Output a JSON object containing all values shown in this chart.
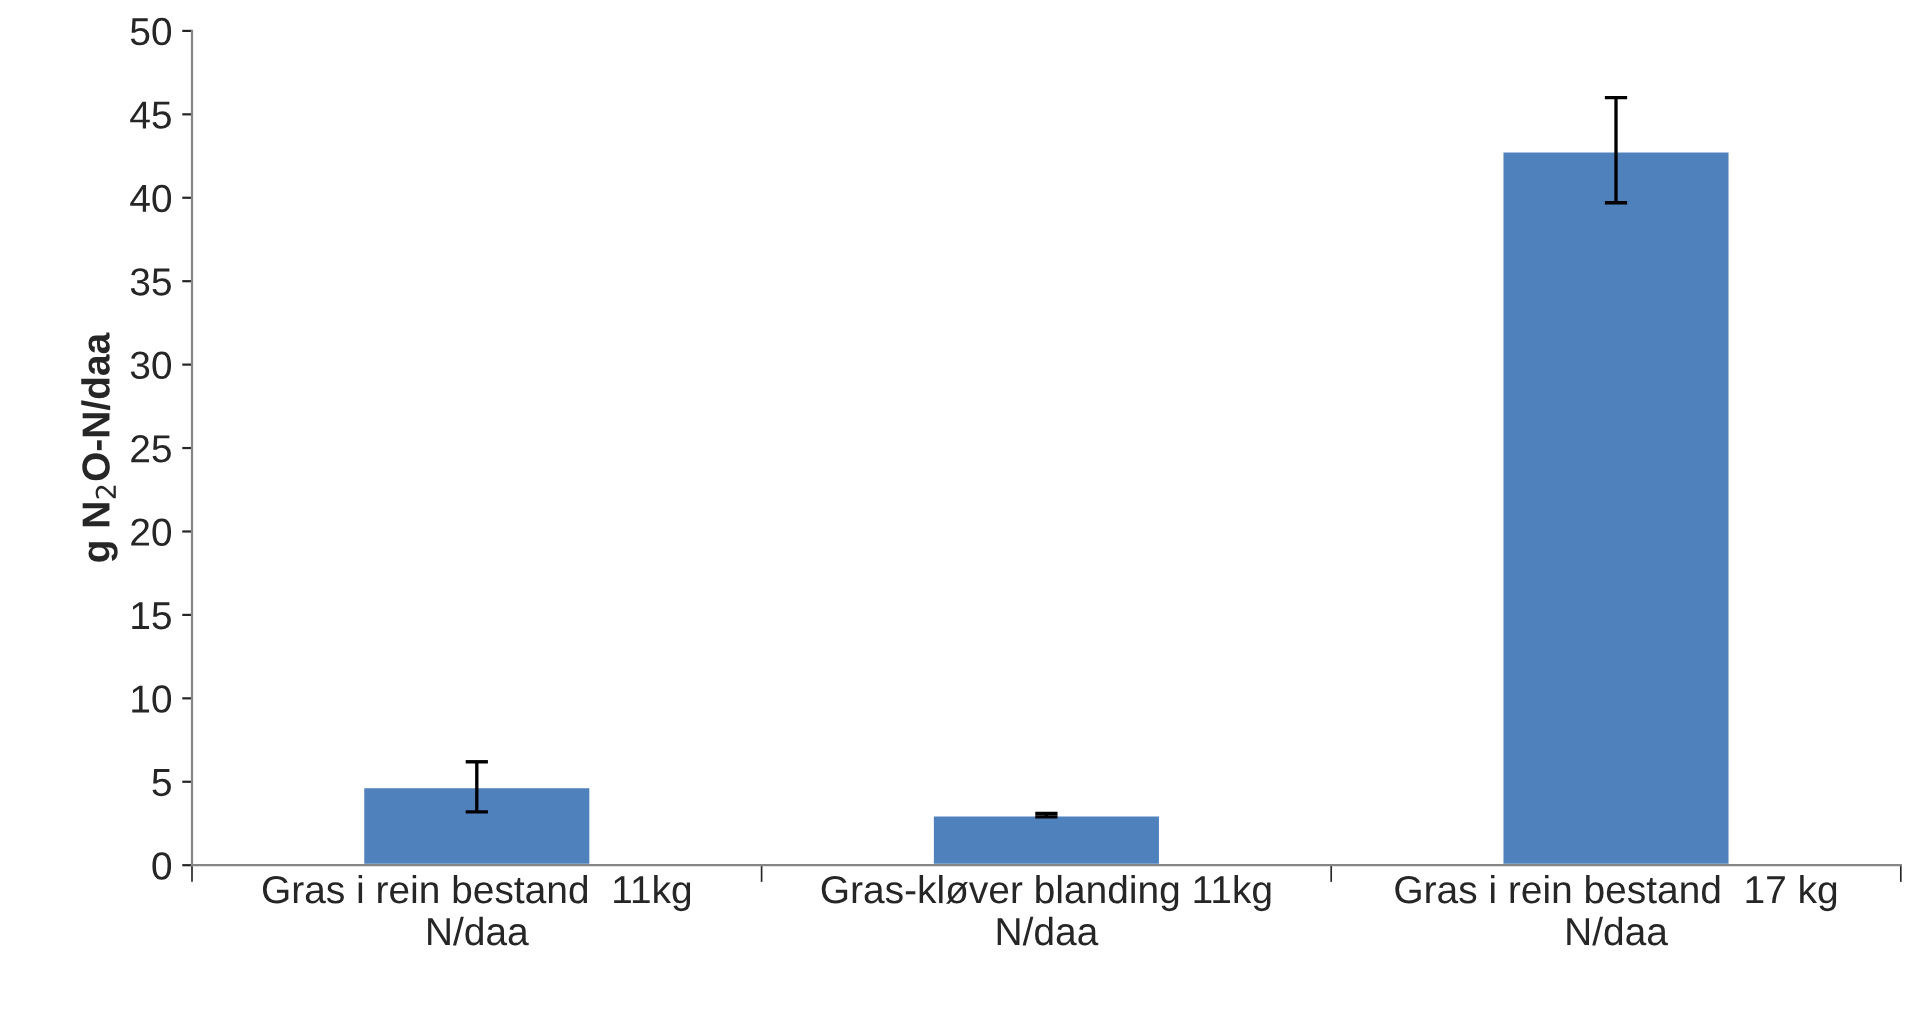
{
  "chart_data": {
    "type": "bar",
    "ylabel": "g N$_{2}$O-N/daa",
    "categories": [
      "Gras i rein bestand  11kg\nN/daa",
      "Gras-kløver blanding 11kg\nN/daa",
      "Gras i rein bestand  17 kg\nN/daa"
    ],
    "values": [
      4.7,
      3.0,
      42.8
    ],
    "errors": [
      [
        3.2,
        6.2
      ],
      [
        2.9,
        3.1
      ],
      [
        39.7,
        46.0
      ]
    ],
    "color": "#4f81bd",
    "ylim": [
      0,
      50
    ],
    "yticks": [
      0,
      5,
      10,
      15,
      20,
      25,
      30,
      35,
      40,
      45,
      50
    ],
    "grid": false
  }
}
